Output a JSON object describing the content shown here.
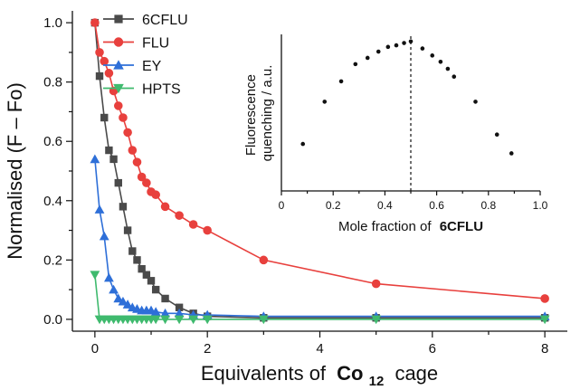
{
  "chart_data": [
    {
      "type": "line",
      "xlabel": "Equivalents of",
      "xlabel_bold": "Co",
      "xlabel_sub": "12",
      "xlabel_suffix": "cage",
      "ylabel": "Normalised (F – Fo)",
      "xlim": [
        -0.4,
        8.4
      ],
      "ylim": [
        -0.04,
        1.04
      ],
      "xticks": [
        0,
        2,
        4,
        6,
        8
      ],
      "yticks": [
        0.0,
        0.2,
        0.4,
        0.6,
        0.8,
        1.0
      ],
      "xtick_labels": [
        "0",
        "2",
        "4",
        "6",
        "8"
      ],
      "ytick_labels": [
        "0.0",
        "0.2",
        "0.4",
        "0.6",
        "0.8",
        "1.0"
      ],
      "legend_position": "top-left",
      "series": [
        {
          "name": "6CFLU",
          "color": "#4a4a4a",
          "marker": "square",
          "x": [
            0,
            0.083,
            0.167,
            0.25,
            0.333,
            0.417,
            0.5,
            0.583,
            0.667,
            0.75,
            0.833,
            0.917,
            1.0,
            1.083,
            1.25,
            1.5,
            1.75,
            2.0,
            3.0,
            5.0,
            8.0
          ],
          "y": [
            1.0,
            0.82,
            0.68,
            0.57,
            0.54,
            0.46,
            0.38,
            0.3,
            0.23,
            0.2,
            0.17,
            0.15,
            0.13,
            0.1,
            0.07,
            0.04,
            0.02,
            0.01,
            0.005,
            0.005,
            0.005
          ]
        },
        {
          "name": "FLU",
          "color": "#e8403d",
          "marker": "circle",
          "x": [
            0,
            0.083,
            0.167,
            0.25,
            0.333,
            0.417,
            0.5,
            0.583,
            0.667,
            0.75,
            0.833,
            0.917,
            1.0,
            1.083,
            1.25,
            1.5,
            1.75,
            2.0,
            3.0,
            5.0,
            8.0
          ],
          "y": [
            1.0,
            0.9,
            0.87,
            0.83,
            0.77,
            0.72,
            0.68,
            0.63,
            0.57,
            0.53,
            0.48,
            0.46,
            0.43,
            0.42,
            0.38,
            0.35,
            0.32,
            0.3,
            0.2,
            0.12,
            0.07
          ]
        },
        {
          "name": "EY",
          "color": "#2e6fd8",
          "marker": "triangle-up",
          "x": [
            0,
            0.083,
            0.167,
            0.25,
            0.333,
            0.417,
            0.5,
            0.583,
            0.667,
            0.75,
            0.833,
            0.917,
            1.0,
            1.083,
            1.25,
            1.5,
            1.75,
            2.0,
            3.0,
            5.0,
            8.0
          ],
          "y": [
            0.54,
            0.37,
            0.28,
            0.14,
            0.1,
            0.07,
            0.06,
            0.05,
            0.04,
            0.035,
            0.03,
            0.03,
            0.03,
            0.025,
            0.02,
            0.02,
            0.015,
            0.015,
            0.01,
            0.01,
            0.01
          ]
        },
        {
          "name": "HPTS",
          "color": "#3fba6e",
          "marker": "triangle-down",
          "x": [
            0,
            0.083,
            0.167,
            0.25,
            0.333,
            0.417,
            0.5,
            0.583,
            0.667,
            0.75,
            0.833,
            0.917,
            1.0,
            1.083,
            1.25,
            1.5,
            1.75,
            2.0,
            3.0,
            5.0,
            8.0
          ],
          "y": [
            0.15,
            0.0,
            0.0,
            0.0,
            0.0,
            0.0,
            0.0,
            0.0,
            0.0,
            0.0,
            0.0,
            0.0,
            0.0,
            0.0,
            0.0,
            0.0,
            0.0,
            0.0,
            0.0,
            0.0,
            0.0
          ]
        }
      ]
    },
    {
      "type": "scatter",
      "xlabel": "Mole fraction of",
      "xlabel_bold": "6CFLU",
      "ylabel_line1": "Fluorescence",
      "ylabel_line2": "quenching / a.u.",
      "xlim": [
        0,
        1.0
      ],
      "ylim": [
        0,
        1.0
      ],
      "xticks": [
        0,
        0.2,
        0.4,
        0.6,
        0.8,
        1.0
      ],
      "xtick_labels": [
        "0",
        "0.2",
        "0.4",
        "0.6",
        "0.8",
        "1.0"
      ],
      "dashed_vertical_line_x": 0.5,
      "points": [
        {
          "x": 0.083,
          "y": 0.3
        },
        {
          "x": 0.167,
          "y": 0.57
        },
        {
          "x": 0.231,
          "y": 0.7
        },
        {
          "x": 0.286,
          "y": 0.81
        },
        {
          "x": 0.333,
          "y": 0.85
        },
        {
          "x": 0.375,
          "y": 0.89
        },
        {
          "x": 0.412,
          "y": 0.92
        },
        {
          "x": 0.444,
          "y": 0.93
        },
        {
          "x": 0.474,
          "y": 0.945
        },
        {
          "x": 0.5,
          "y": 0.955
        },
        {
          "x": 0.545,
          "y": 0.91
        },
        {
          "x": 0.583,
          "y": 0.865
        },
        {
          "x": 0.615,
          "y": 0.825
        },
        {
          "x": 0.643,
          "y": 0.78
        },
        {
          "x": 0.667,
          "y": 0.73
        },
        {
          "x": 0.75,
          "y": 0.57
        },
        {
          "x": 0.833,
          "y": 0.36
        },
        {
          "x": 0.889,
          "y": 0.24
        }
      ]
    }
  ]
}
